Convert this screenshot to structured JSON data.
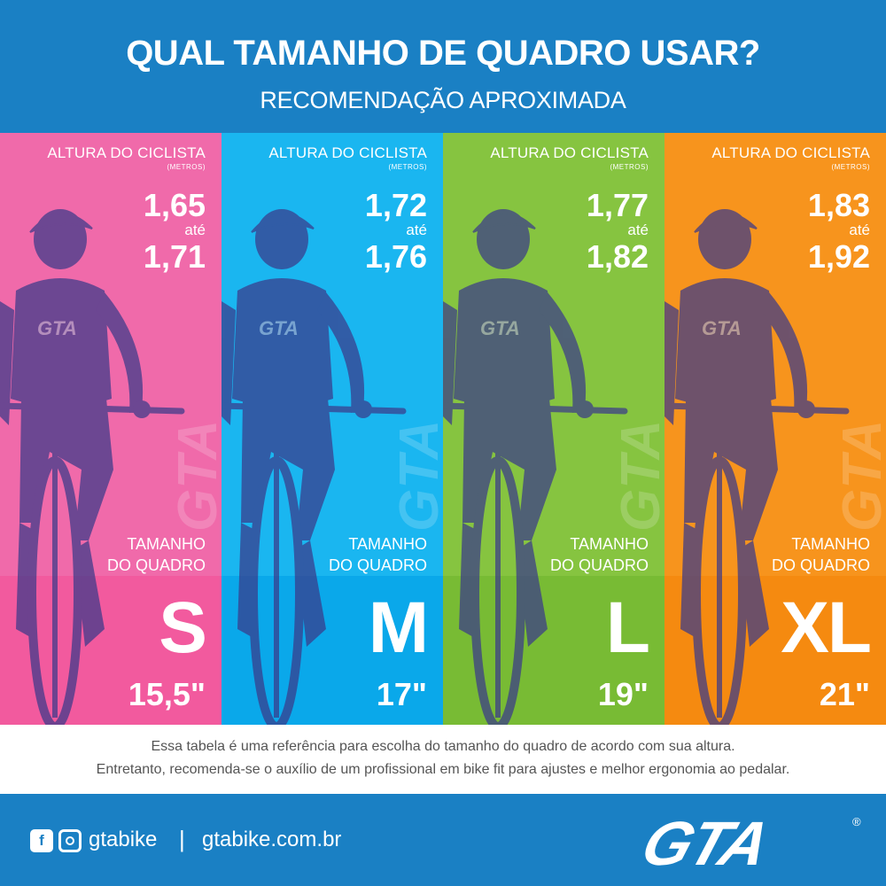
{
  "header": {
    "title": "QUAL TAMANHO DE QUADRO USAR?",
    "subtitle": "RECOMENDAÇÃO APROXIMADA"
  },
  "columns": [
    {
      "height_label": "ALTURA DO CICLISTA",
      "height_unit": "(METROS)",
      "height_from": "1,65",
      "height_sep": "até",
      "height_to": "1,71",
      "frame_label_1": "TAMANHO",
      "frame_label_2": "DO QUADRO",
      "size": "S",
      "inches": "15,5\"",
      "color_top": "#f06aaa",
      "color_bottom": "#f25a9e"
    },
    {
      "height_label": "ALTURA DO CICLISTA",
      "height_unit": "(METROS)",
      "height_from": "1,72",
      "height_sep": "até",
      "height_to": "1,76",
      "frame_label_1": "TAMANHO",
      "frame_label_2": "DO QUADRO",
      "size": "M",
      "inches": "17\"",
      "color_top": "#1ab6f0",
      "color_bottom": "#0aa8ea"
    },
    {
      "height_label": "ALTURA DO CICLISTA",
      "height_unit": "(METROS)",
      "height_from": "1,77",
      "height_sep": "até",
      "height_to": "1,82",
      "frame_label_1": "TAMANHO",
      "frame_label_2": "DO QUADRO",
      "size": "L",
      "inches": "19\"",
      "color_top": "#86c440",
      "color_bottom": "#78bb34"
    },
    {
      "height_label": "ALTURA DO CICLISTA",
      "height_unit": "(METROS)",
      "height_from": "1,83",
      "height_sep": "até",
      "height_to": "1,92",
      "frame_label_1": "TAMANHO",
      "frame_label_2": "DO QUADRO",
      "size": "XL",
      "inches": "21\"",
      "color_top": "#f7941d",
      "color_bottom": "#f58a10"
    }
  ],
  "note": {
    "line1": "Essa tabela é uma referência para escolha do tamanho do quadro de acordo com sua altura.",
    "line2": "Entretanto, recomenda-se o auxílio de um profissional em bike fit para ajustes e melhor ergonomia ao pedalar."
  },
  "footer": {
    "facebook_icon": "facebook-icon",
    "instagram_icon": "instagram-icon",
    "handle": "gtabike",
    "separator": "|",
    "website": "gtabike.com.br",
    "logo_text": "GTA",
    "logo_mark": "®"
  },
  "colors": {
    "brand_blue": "#1a80c4",
    "rider_ink": "#3a3a8a"
  }
}
